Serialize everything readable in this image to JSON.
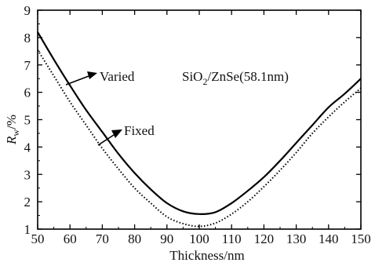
{
  "chart_data": {
    "type": "line",
    "title": "",
    "xlabel": "Thickness/nm",
    "ylabel_main": "R",
    "ylabel_sub": "w",
    "ylabel_suffix": "/%",
    "xlim": [
      50,
      150
    ],
    "ylim": [
      1,
      9
    ],
    "xticks": [
      "50",
      "60",
      "70",
      "80",
      "90",
      "100",
      "110",
      "120",
      "130",
      "140",
      "150"
    ],
    "yticks": [
      "1",
      "2",
      "3",
      "4",
      "5",
      "6",
      "7",
      "8",
      "9"
    ],
    "grid": false,
    "legend": "none",
    "annotation": {
      "prefix": "SiO",
      "sub": "2",
      "suffix": "/ZnSe(58.1nm)"
    },
    "series": [
      {
        "name": "Varied",
        "style": "solid",
        "color": "#000000",
        "x": [
          50,
          55,
          60,
          65,
          70,
          75,
          80,
          85,
          90,
          95,
          100,
          105,
          110,
          115,
          120,
          125,
          130,
          135,
          140,
          145,
          150
        ],
        "y": [
          8.2,
          7.2,
          6.25,
          5.35,
          4.55,
          3.75,
          3.05,
          2.45,
          1.95,
          1.65,
          1.55,
          1.62,
          1.95,
          2.4,
          2.9,
          3.5,
          4.15,
          4.8,
          5.45,
          5.95,
          6.5
        ]
      },
      {
        "name": "Fixed",
        "style": "dotted",
        "color": "#000000",
        "x": [
          50,
          55,
          60,
          65,
          70,
          75,
          80,
          85,
          90,
          95,
          100,
          105,
          110,
          115,
          120,
          125,
          130,
          135,
          140,
          145,
          150
        ],
        "y": [
          7.55,
          6.6,
          5.65,
          4.8,
          3.95,
          3.2,
          2.5,
          1.95,
          1.45,
          1.2,
          1.1,
          1.22,
          1.55,
          2.0,
          2.55,
          3.15,
          3.8,
          4.5,
          5.1,
          5.65,
          6.15
        ]
      }
    ],
    "labels": [
      {
        "text": "Varied",
        "series": 0
      },
      {
        "text": "Fixed",
        "series": 1
      }
    ]
  }
}
